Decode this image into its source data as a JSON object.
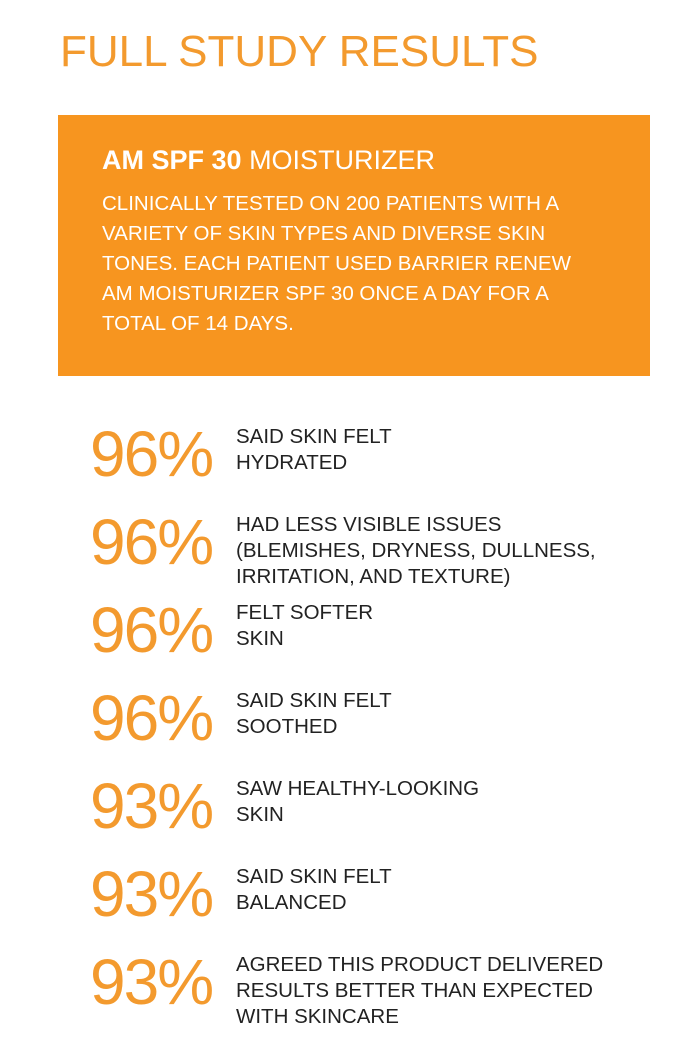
{
  "page": {
    "title": "FULL STUDY RESULTS"
  },
  "info_box": {
    "product_bold": "AM SPF 30",
    "product_light": "MOISTURIZER",
    "description": "CLINICALLY TESTED ON 200 PATIENTS WITH A VARIETY OF SKIN TYPES AND DIVERSE SKIN TONES. EACH PATIENT USED BARRIER RENEW AM MOISTURIZER SPF 30 ONCE A DAY FOR A TOTAL OF 14 DAYS."
  },
  "results": [
    {
      "percent": "96%",
      "text": "SAID SKIN FELT\nHYDRATED"
    },
    {
      "percent": "96%",
      "text": "HAD LESS VISIBLE ISSUES\n(BLEMISHES, DRYNESS, DULLNESS,\nIRRITATION, AND TEXTURE)"
    },
    {
      "percent": "96%",
      "text": "FELT SOFTER\nSKIN"
    },
    {
      "percent": "96%",
      "text": "SAID SKIN FELT\nSOOTHED"
    },
    {
      "percent": "93%",
      "text": "SAW HEALTHY-LOOKING\nSKIN"
    },
    {
      "percent": "93%",
      "text": "SAID SKIN FELT\nBALANCED"
    },
    {
      "percent": "93%",
      "text": "AGREED THIS PRODUCT DELIVERED\nRESULTS BETTER THAN EXPECTED\nWITH SKINCARE"
    }
  ],
  "colors": {
    "accent_orange": "#f7951f",
    "percent_orange": "#f39a2e",
    "body_text": "#222222",
    "box_text": "#ffffff"
  }
}
